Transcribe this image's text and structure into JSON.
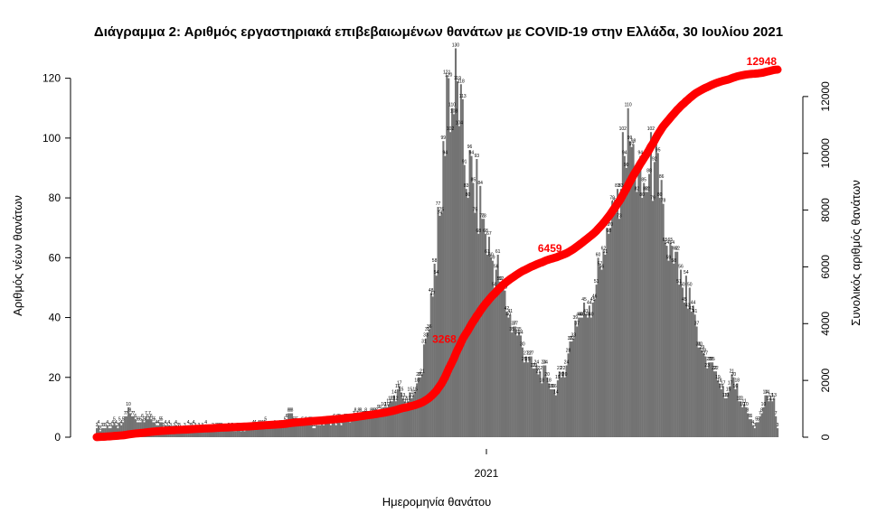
{
  "chart_data": {
    "type": "bar",
    "title": "Διάγραμμα 2: Αριθμός εργαστηριακά επιβεβαιωμένων θανάτων με COVID-19 στην Ελλάδα, 30 Ιουλίου 2021",
    "xlabel": "Ημερομηνία θανάτου",
    "ylabel": "Αριθμός νέων θανάτων",
    "ylabel_right": "Συνολικός αριθμός θανάτων",
    "x_tick_labels": [
      "2021"
    ],
    "y_ticks": [
      0,
      20,
      40,
      60,
      80,
      100,
      120
    ],
    "y2_ticks": [
      0,
      2000,
      4000,
      6000,
      8000,
      10000,
      12000
    ],
    "ylim": [
      0,
      122
    ],
    "y2lim": [
      0,
      12950
    ],
    "grid": false,
    "colors": {
      "bars": "#737373",
      "cumulative_line": "#ff0000",
      "cumulative_labels": "#ff0000"
    },
    "cumulative_labels": [
      {
        "value": 3268,
        "text": "3268"
      },
      {
        "value": 6459,
        "text": "6459"
      },
      {
        "value": 12948,
        "text": "12948"
      }
    ],
    "daily_key_points": [
      [
        0,
        3
      ],
      [
        14,
        4
      ],
      [
        17,
        7
      ],
      [
        18,
        10
      ],
      [
        20,
        7
      ],
      [
        24,
        5
      ],
      [
        28,
        7
      ],
      [
        32,
        5
      ],
      [
        40,
        3
      ],
      [
        60,
        3
      ],
      [
        80,
        3
      ],
      [
        95,
        4
      ],
      [
        100,
        3
      ],
      [
        105,
        4
      ],
      [
        108,
        6
      ],
      [
        110,
        8
      ],
      [
        115,
        4
      ],
      [
        125,
        4
      ],
      [
        132,
        5
      ],
      [
        140,
        5
      ],
      [
        145,
        6
      ],
      [
        150,
        8
      ],
      [
        155,
        7
      ],
      [
        160,
        9
      ],
      [
        165,
        10
      ],
      [
        168,
        12
      ],
      [
        171,
        16
      ],
      [
        175,
        12
      ],
      [
        180,
        14
      ],
      [
        184,
        20
      ],
      [
        188,
        35
      ],
      [
        192,
        58
      ],
      [
        196,
        75
      ],
      [
        199,
        121
      ],
      [
        202,
        110
      ],
      [
        205,
        119
      ],
      [
        209,
        91
      ],
      [
        214,
        85
      ],
      [
        219,
        73
      ],
      [
        224,
        60
      ],
      [
        230,
        52
      ],
      [
        234,
        40
      ],
      [
        238,
        37
      ],
      [
        244,
        27
      ],
      [
        248,
        23
      ],
      [
        252,
        22
      ],
      [
        256,
        20
      ],
      [
        260,
        16
      ],
      [
        264,
        20
      ],
      [
        268,
        28
      ],
      [
        272,
        39
      ],
      [
        276,
        40
      ],
      [
        280,
        44
      ],
      [
        284,
        51
      ],
      [
        288,
        62
      ],
      [
        292,
        70
      ],
      [
        296,
        83
      ],
      [
        300,
        94
      ],
      [
        303,
        99
      ],
      [
        306,
        88
      ],
      [
        310,
        80
      ],
      [
        314,
        88
      ],
      [
        317,
        92
      ],
      [
        320,
        80
      ],
      [
        324,
        64
      ],
      [
        328,
        58
      ],
      [
        333,
        50
      ],
      [
        338,
        42
      ],
      [
        343,
        30
      ],
      [
        348,
        25
      ],
      [
        352,
        22
      ],
      [
        357,
        13
      ],
      [
        362,
        20
      ],
      [
        366,
        12
      ],
      [
        370,
        8
      ],
      [
        374,
        3
      ],
      [
        378,
        8
      ],
      [
        381,
        14
      ],
      [
        385,
        13
      ],
      [
        387,
        3
      ]
    ],
    "daily_series_days": 388
  }
}
